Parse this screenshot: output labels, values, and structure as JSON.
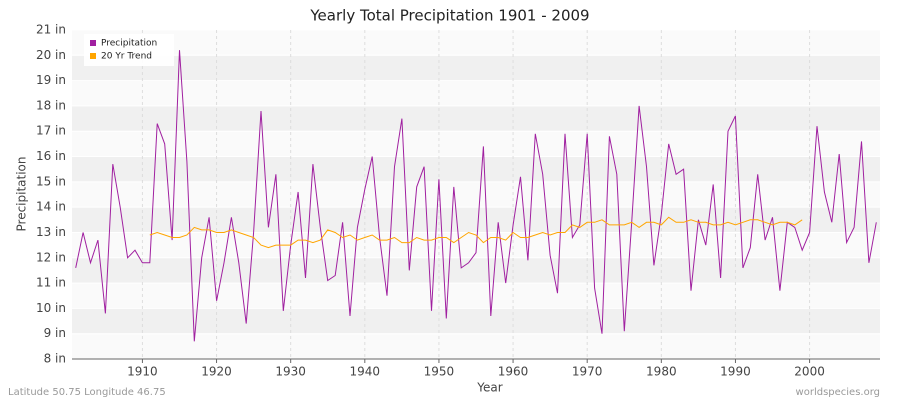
{
  "chart_data": {
    "type": "line",
    "title": "Yearly Total Precipitation 1901 - 2009",
    "xlabel": "Year",
    "ylabel": "Precipitation",
    "footer_left": "Latitude 50.75 Longitude 46.75",
    "footer_right": "worldspecies.org",
    "x": [
      1901,
      1902,
      1903,
      1904,
      1905,
      1906,
      1907,
      1908,
      1909,
      1910,
      1911,
      1912,
      1913,
      1914,
      1915,
      1916,
      1917,
      1918,
      1919,
      1920,
      1921,
      1922,
      1923,
      1924,
      1925,
      1926,
      1927,
      1928,
      1929,
      1930,
      1931,
      1932,
      1933,
      1934,
      1935,
      1936,
      1937,
      1938,
      1939,
      1940,
      1941,
      1942,
      1943,
      1944,
      1945,
      1946,
      1947,
      1948,
      1949,
      1950,
      1951,
      1952,
      1953,
      1954,
      1955,
      1956,
      1957,
      1958,
      1959,
      1960,
      1961,
      1962,
      1963,
      1964,
      1965,
      1966,
      1967,
      1968,
      1969,
      1970,
      1971,
      1972,
      1973,
      1974,
      1975,
      1976,
      1977,
      1978,
      1979,
      1980,
      1981,
      1982,
      1983,
      1984,
      1985,
      1986,
      1987,
      1988,
      1989,
      1990,
      1991,
      1992,
      1993,
      1994,
      1995,
      1996,
      1997,
      1998,
      1999,
      2000,
      2001,
      2002,
      2003,
      2004,
      2005,
      2006,
      2007,
      2008,
      2009
    ],
    "series": [
      {
        "name": "Precipitation",
        "color": "#a020a0",
        "values": [
          11.6,
          13.0,
          11.8,
          12.7,
          9.8,
          15.7,
          14.0,
          12.0,
          12.3,
          11.8,
          11.8,
          17.3,
          16.5,
          12.7,
          20.2,
          15.8,
          8.7,
          12.0,
          13.6,
          10.3,
          11.8,
          13.6,
          11.8,
          9.4,
          13.0,
          17.8,
          13.2,
          15.3,
          9.9,
          12.5,
          14.6,
          11.2,
          15.7,
          13.2,
          11.1,
          11.3,
          13.4,
          9.7,
          13.2,
          14.7,
          16.0,
          12.8,
          10.5,
          15.6,
          17.5,
          11.5,
          14.8,
          15.6,
          9.9,
          15.1,
          9.6,
          14.8,
          11.6,
          11.8,
          12.2,
          16.4,
          9.7,
          13.4,
          11.0,
          13.3,
          15.2,
          11.9,
          16.9,
          15.3,
          12.1,
          10.6,
          16.9,
          12.8,
          13.3,
          16.9,
          10.8,
          9.0,
          16.8,
          15.3,
          9.1,
          13.4,
          18.0,
          15.6,
          11.7,
          13.7,
          16.5,
          15.3,
          15.5,
          10.7,
          13.5,
          12.5,
          14.9,
          11.2,
          17.0,
          17.6,
          11.6,
          12.4,
          15.3,
          12.7,
          13.6,
          10.7,
          13.4,
          13.2,
          12.3,
          13.0,
          17.2,
          14.6,
          13.4,
          16.1,
          12.6,
          13.2,
          16.6,
          11.8,
          13.4
        ]
      },
      {
        "name": "20 Yr Trend",
        "color": "#ffa500",
        "values": [
          null,
          null,
          null,
          null,
          null,
          null,
          null,
          null,
          null,
          null,
          12.9,
          13.0,
          12.9,
          12.8,
          12.8,
          12.9,
          13.2,
          13.1,
          13.1,
          13.0,
          13.0,
          13.1,
          13.0,
          12.9,
          12.8,
          12.5,
          12.4,
          12.5,
          12.5,
          12.5,
          12.7,
          12.7,
          12.6,
          12.7,
          13.1,
          13.0,
          12.8,
          12.9,
          12.7,
          12.8,
          12.9,
          12.7,
          12.7,
          12.8,
          12.6,
          12.6,
          12.8,
          12.7,
          12.7,
          12.8,
          12.8,
          12.6,
          12.8,
          13.0,
          12.9,
          12.6,
          12.8,
          12.8,
          12.7,
          13.0,
          12.8,
          12.8,
          12.9,
          13.0,
          12.9,
          13.0,
          13.0,
          13.3,
          13.2,
          13.4,
          13.4,
          13.5,
          13.3,
          13.3,
          13.3,
          13.4,
          13.2,
          13.4,
          13.4,
          13.3,
          13.6,
          13.4,
          13.4,
          13.5,
          13.4,
          13.4,
          13.3,
          13.3,
          13.4,
          13.3,
          13.4,
          13.5,
          13.5,
          13.4,
          13.3,
          13.4,
          13.4,
          13.3,
          13.5,
          null,
          null,
          null,
          null,
          null,
          null,
          null,
          null,
          null,
          null
        ]
      }
    ],
    "xlim": [
      1900.5,
      2009.5
    ],
    "xticks": [
      1910,
      1920,
      1930,
      1940,
      1950,
      1960,
      1970,
      1980,
      1990,
      2000
    ],
    "ylim": [
      8,
      21
    ],
    "yticks": [
      {
        "value": 8,
        "label": "8 in"
      },
      {
        "value": 9,
        "label": "9 in"
      },
      {
        "value": 10,
        "label": "10 in"
      },
      {
        "value": 11,
        "label": "11 in"
      },
      {
        "value": 12,
        "label": "12 in"
      },
      {
        "value": 13,
        "label": "13 in"
      },
      {
        "value": 14,
        "label": "14 in"
      },
      {
        "value": 15,
        "label": "15 in"
      },
      {
        "value": 16,
        "label": "16 in"
      },
      {
        "value": 17,
        "label": "17 in"
      },
      {
        "value": 18,
        "label": "18 in"
      },
      {
        "value": 19,
        "label": "19 in"
      },
      {
        "value": 20,
        "label": "20 in"
      },
      {
        "value": 21,
        "label": "21 in"
      }
    ],
    "grid": true,
    "legend": "upper-left"
  }
}
